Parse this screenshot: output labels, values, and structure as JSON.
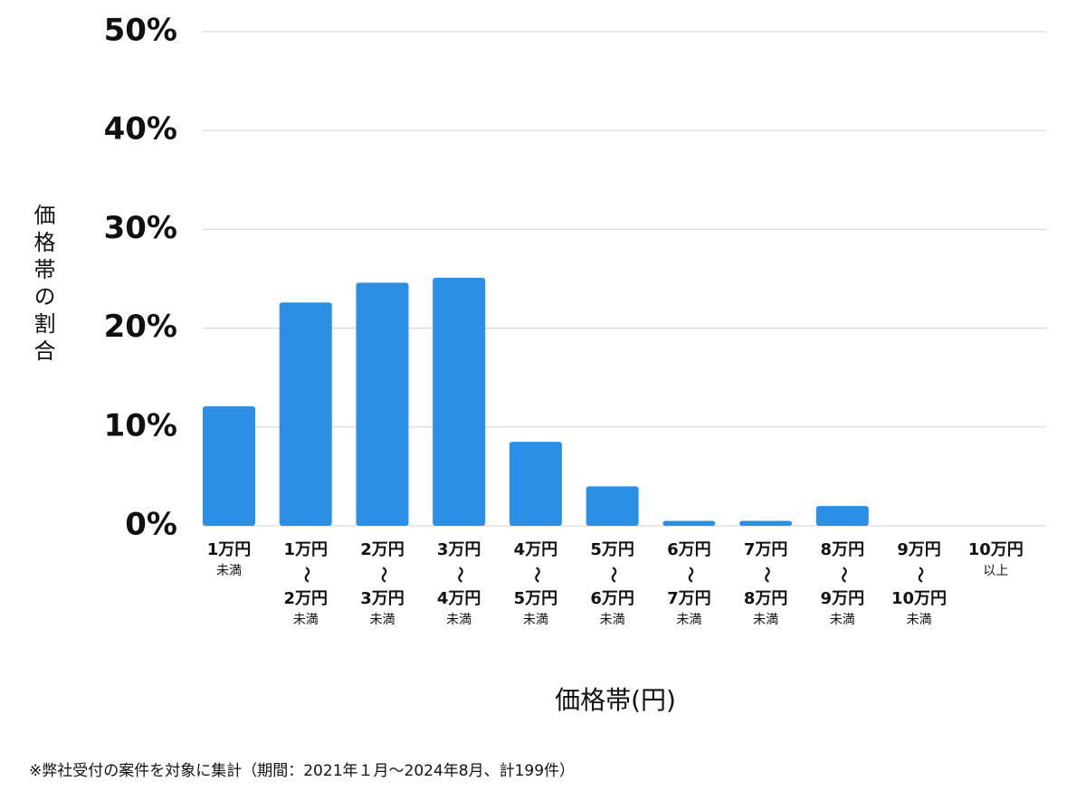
{
  "chart_data": {
    "type": "bar",
    "y_label": "価格帯の割合",
    "x_label": "価格帯(円)",
    "footnote": "※弊社受付の案件を対象に集計（期間：2021年１月～2024年8月、計199件）",
    "categories": [
      [
        "1万円",
        "未満"
      ],
      [
        "1万円",
        "〜",
        "2万円",
        "未満"
      ],
      [
        "2万円",
        "〜",
        "3万円",
        "未満"
      ],
      [
        "3万円",
        "〜",
        "4万円",
        "未満"
      ],
      [
        "4万円",
        "〜",
        "5万円",
        "未満"
      ],
      [
        "5万円",
        "〜",
        "6万円",
        "未満"
      ],
      [
        "6万円",
        "〜",
        "7万円",
        "未満"
      ],
      [
        "7万円",
        "〜",
        "8万円",
        "未満"
      ],
      [
        "8万円",
        "〜",
        "9万円",
        "未満"
      ],
      [
        "9万円",
        "〜",
        "10万円",
        "未満"
      ],
      [
        "10万円",
        "以上"
      ]
    ],
    "values": [
      12.1,
      22.6,
      24.6,
      25.1,
      8.5,
      4.0,
      0.5,
      0.5,
      2.0,
      0,
      0
    ],
    "color": "#2b8fe5",
    "ylim": [
      0,
      50
    ],
    "yticks": [
      {
        "value": 0,
        "label": "0%"
      },
      {
        "value": 10,
        "label": "10%"
      },
      {
        "value": 20,
        "label": "20%"
      },
      {
        "value": 30,
        "label": "30%"
      },
      {
        "value": 40,
        "label": "40%"
      },
      {
        "value": 50,
        "label": "50%"
      }
    ],
    "grid": true
  }
}
